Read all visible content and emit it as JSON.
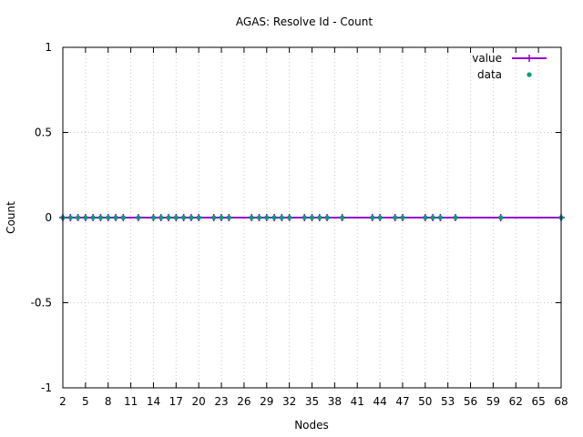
{
  "chart_data": {
    "type": "line",
    "title": "AGAS: Resolve Id - Count",
    "xlabel": "Nodes",
    "ylabel": "Count",
    "xlim": [
      2,
      68
    ],
    "ylim": [
      -1,
      1
    ],
    "x_ticks": [
      2,
      5,
      8,
      11,
      14,
      17,
      20,
      23,
      26,
      29,
      32,
      35,
      38,
      41,
      44,
      47,
      50,
      53,
      56,
      59,
      62,
      65,
      68
    ],
    "x_tick_labels": [
      "2",
      "5",
      "8",
      "11",
      "14",
      "17",
      "20",
      "23",
      "26",
      "29",
      "32",
      "35",
      "38",
      "41",
      "44",
      "47",
      "50",
      "53",
      "56",
      "59",
      "62",
      "65",
      "68"
    ],
    "y_ticks": [
      -1,
      -0.5,
      0,
      0.5,
      1
    ],
    "y_tick_labels": [
      "-1",
      "-0.5",
      "0",
      "0.5",
      "1"
    ],
    "grid": true,
    "legend_position": "top-right",
    "series": [
      {
        "name": "value",
        "style": "line",
        "color": "#9400d3",
        "x": [
          2,
          68
        ],
        "y": [
          0,
          0
        ]
      },
      {
        "name": "data",
        "style": "points",
        "color": "#009e73",
        "x": [
          2,
          3,
          4,
          5,
          6,
          7,
          8,
          9,
          10,
          12,
          14,
          15,
          16,
          17,
          18,
          19,
          20,
          22,
          23,
          24,
          27,
          28,
          29,
          30,
          31,
          32,
          34,
          35,
          36,
          37,
          39,
          43,
          44,
          46,
          47,
          50,
          51,
          52,
          54,
          60,
          68
        ],
        "y": [
          0,
          0,
          0,
          0,
          0,
          0,
          0,
          0,
          0,
          0,
          0,
          0,
          0,
          0,
          0,
          0,
          0,
          0,
          0,
          0,
          0,
          0,
          0,
          0,
          0,
          0,
          0,
          0,
          0,
          0,
          0,
          0,
          0,
          0,
          0,
          0,
          0,
          0,
          0,
          0,
          0
        ]
      }
    ]
  }
}
